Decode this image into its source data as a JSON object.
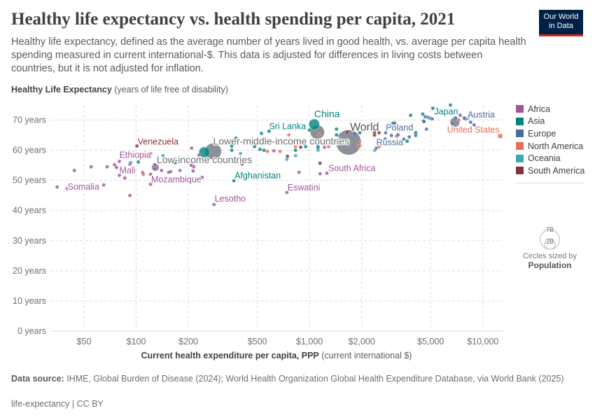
{
  "header": {
    "title": "Healthy life expectancy vs. health spending per capita, 2021",
    "subtitle": "Healthy life expectancy, defined as the average number of years lived in good health, vs. average per capita health spending measured in current international-$. This data is adjusted for differences in living costs between countries, but it is not adjusted for inflation.",
    "logo_line1": "Our World",
    "logo_line2": "in Data"
  },
  "legend": {
    "items": [
      {
        "label": "Africa",
        "color": "#a2559c"
      },
      {
        "label": "Asia",
        "color": "#00847e"
      },
      {
        "label": "Europe",
        "color": "#4c6a9c"
      },
      {
        "label": "North America",
        "color": "#e56e5a"
      },
      {
        "label": "Oceania",
        "color": "#38aaba"
      },
      {
        "label": "South America",
        "color": "#883039"
      }
    ],
    "size_big": "7B",
    "size_small": "2B",
    "size_note": "Circles sized by",
    "size_var": "Population"
  },
  "footer": {
    "source_label": "Data source:",
    "source_text": "IHME, Global Burden of Disease (2024); World Health Organization Global Health Expenditure Database, via World Bank (2025)",
    "license": "life-expectancy | CC BY"
  },
  "chart_data": {
    "type": "scatter",
    "title": "Healthy life expectancy vs. health spending per capita, 2021",
    "ylabel_bold": "Healthy Life Expectancy",
    "ylabel_rest": "(years of life free of disability)",
    "xlabel_bold": "Current health expenditure per capita, PPP",
    "xlabel_rest": "(current international $)",
    "x_scale": "log",
    "xlim": [
      32,
      13000
    ],
    "ylim": [
      0,
      75
    ],
    "grid": true,
    "legend_position": "right",
    "x_ticks": [
      {
        "v": 50,
        "label": "$50"
      },
      {
        "v": 100,
        "label": "$100"
      },
      {
        "v": 200,
        "label": "$200"
      },
      {
        "v": 500,
        "label": "$500"
      },
      {
        "v": 1000,
        "label": "$1,000"
      },
      {
        "v": 2000,
        "label": "$2,000"
      },
      {
        "v": 5000,
        "label": "$5,000"
      },
      {
        "v": 10000,
        "label": "$10,000"
      }
    ],
    "y_ticks": [
      {
        "v": 0,
        "label": "0 years"
      },
      {
        "v": 10,
        "label": "10 years"
      },
      {
        "v": 20,
        "label": "20 years"
      },
      {
        "v": 30,
        "label": "30 years"
      },
      {
        "v": 40,
        "label": "40 years"
      },
      {
        "v": 50,
        "label": "50 years"
      },
      {
        "v": 60,
        "label": "60 years"
      },
      {
        "v": 70,
        "label": "70 years"
      }
    ],
    "aggregates": [
      {
        "name": "World",
        "x": 1680,
        "y": 62.6,
        "pop": 7.9
      },
      {
        "name": "Lower-middle-income countries",
        "x": 278,
        "y": 59.6,
        "pop": 3.4
      },
      {
        "name": "",
        "x": 1110,
        "y": 66.0,
        "pop": 2.5
      },
      {
        "name": "Low-income countries",
        "x": 129,
        "y": 54.3,
        "pop": 0.7
      },
      {
        "name": "",
        "x": 6900,
        "y": 69.3,
        "pop": 1.2
      }
    ],
    "points": [
      {
        "name": "China",
        "region": "Asia",
        "x": 1064,
        "y": 68.6,
        "pop": 1.41
      },
      {
        "name": "",
        "region": "Asia",
        "x": 247,
        "y": 59.3,
        "pop": 1.41
      },
      {
        "name": "Somalia",
        "region": "Africa",
        "x": 35,
        "y": 47.8
      },
      {
        "name": "Mali",
        "region": "Africa",
        "x": 80,
        "y": 51.7
      },
      {
        "name": "Ethiopia",
        "region": "Africa",
        "x": 92,
        "y": 55.4,
        "pop": 0.12
      },
      {
        "name": "Venezuela",
        "region": "South America",
        "x": 101,
        "y": 61.4
      },
      {
        "name": "Mozambique",
        "region": "Africa",
        "x": 121,
        "y": 48.7
      },
      {
        "name": "Afghanistan",
        "region": "Asia",
        "x": 366,
        "y": 49.9
      },
      {
        "name": "Lesotho",
        "region": "Africa",
        "x": 281,
        "y": 42.0
      },
      {
        "name": "Sri Lanka",
        "region": "Asia",
        "x": 584,
        "y": 66.3
      },
      {
        "name": "Eswatini",
        "region": "Africa",
        "x": 740,
        "y": 46.0
      },
      {
        "name": "South Africa",
        "region": "Africa",
        "x": 1260,
        "y": 52.4
      },
      {
        "name": "Russia",
        "region": "Europe",
        "x": 2430,
        "y": 60.7
      },
      {
        "name": "Poland",
        "region": "Europe",
        "x": 2970,
        "y": 64.9
      },
      {
        "name": "Japan",
        "region": "Asia",
        "x": 5150,
        "y": 73.9,
        "pop": 0.125
      },
      {
        "name": "Austria",
        "region": "Europe",
        "x": 7940,
        "y": 70.4
      },
      {
        "name": "United States",
        "region": "North America",
        "x": 12600,
        "y": 64.7,
        "pop": 0.33
      },
      {
        "name": "",
        "region": "Africa",
        "x": 40,
        "y": 47.3
      },
      {
        "name": "",
        "region": "Africa",
        "x": 44,
        "y": 53.3
      },
      {
        "name": "",
        "region": "Africa",
        "x": 55,
        "y": 54.5
      },
      {
        "name": "",
        "region": "Africa",
        "x": 65,
        "y": 48.5
      },
      {
        "name": "",
        "region": "Africa",
        "x": 68,
        "y": 54.5
      },
      {
        "name": "",
        "region": "Africa",
        "x": 75,
        "y": 55.2
      },
      {
        "name": "",
        "region": "Africa",
        "x": 77,
        "y": 54.3
      },
      {
        "name": "",
        "region": "Africa",
        "x": 80,
        "y": 56.3
      },
      {
        "name": "",
        "region": "Africa",
        "x": 86,
        "y": 50.8
      },
      {
        "name": "",
        "region": "Africa",
        "x": 92,
        "y": 45.0
      },
      {
        "name": "",
        "region": "Oceania",
        "x": 93,
        "y": 55.9
      },
      {
        "name": "",
        "region": "Asia",
        "x": 103,
        "y": 56.1
      },
      {
        "name": "",
        "region": "Africa",
        "x": 109,
        "y": 52.6
      },
      {
        "name": "",
        "region": "North America",
        "x": 110,
        "y": 52.0
      },
      {
        "name": "",
        "region": "Africa",
        "x": 121,
        "y": 58.9
      },
      {
        "name": "",
        "region": "Africa",
        "x": 121,
        "y": 52.0
      },
      {
        "name": "",
        "region": "Africa",
        "x": 128,
        "y": 55.2
      },
      {
        "name": "",
        "region": "Africa",
        "x": 128,
        "y": 53.8
      },
      {
        "name": "",
        "region": "Africa",
        "x": 140,
        "y": 53.3
      },
      {
        "name": "",
        "region": "Oceania",
        "x": 143,
        "y": 58.2
      },
      {
        "name": "",
        "region": "Africa",
        "x": 154,
        "y": 52.7
      },
      {
        "name": "",
        "region": "Africa",
        "x": 158,
        "y": 52.9
      },
      {
        "name": "",
        "region": "Oceania",
        "x": 167,
        "y": 57.3
      },
      {
        "name": "",
        "region": "Asia",
        "x": 168,
        "y": 55.9
      },
      {
        "name": "",
        "region": "Africa",
        "x": 179,
        "y": 53.3
      },
      {
        "name": "",
        "region": "Africa",
        "x": 209,
        "y": 60.7
      },
      {
        "name": "",
        "region": "Africa",
        "x": 208,
        "y": 55.0
      },
      {
        "name": "",
        "region": "Africa",
        "x": 215,
        "y": 54.5
      },
      {
        "name": "",
        "region": "Africa",
        "x": 213,
        "y": 53.1
      },
      {
        "name": "",
        "region": "Africa",
        "x": 230,
        "y": 58.4
      },
      {
        "name": "",
        "region": "Africa",
        "x": 240,
        "y": 51.0
      },
      {
        "name": "",
        "region": "Asia",
        "x": 356,
        "y": 60.0
      },
      {
        "name": "",
        "region": "Asia",
        "x": 356,
        "y": 61.4
      },
      {
        "name": "",
        "region": "Asia",
        "x": 376,
        "y": 64.0
      },
      {
        "name": "",
        "region": "Oceania",
        "x": 400,
        "y": 58.9
      },
      {
        "name": "",
        "region": "Africa",
        "x": 408,
        "y": 55.4
      },
      {
        "name": "",
        "region": "Asia",
        "x": 482,
        "y": 61.2
      },
      {
        "name": "",
        "region": "Asia",
        "x": 528,
        "y": 65.6
      },
      {
        "name": "",
        "region": "Asia",
        "x": 518,
        "y": 60.3
      },
      {
        "name": "",
        "region": "Asia",
        "x": 546,
        "y": 60.0
      },
      {
        "name": "",
        "region": "North America",
        "x": 572,
        "y": 59.6
      },
      {
        "name": "",
        "region": "Africa",
        "x": 623,
        "y": 59.8
      },
      {
        "name": "",
        "region": "North America",
        "x": 676,
        "y": 59.6
      },
      {
        "name": "",
        "region": "South America",
        "x": 746,
        "y": 58.0
      },
      {
        "name": "",
        "region": "Oceania",
        "x": 740,
        "y": 57.0
      },
      {
        "name": "",
        "region": "North America",
        "x": 760,
        "y": 65.1
      },
      {
        "name": "",
        "region": "Asia",
        "x": 830,
        "y": 60.0
      },
      {
        "name": "",
        "region": "Oceania",
        "x": 830,
        "y": 58.2
      },
      {
        "name": "",
        "region": "North America",
        "x": 830,
        "y": 61.2
      },
      {
        "name": "",
        "region": "South America",
        "x": 890,
        "y": 61.0
      },
      {
        "name": "",
        "region": "Africa",
        "x": 870,
        "y": 52.7
      },
      {
        "name": "",
        "region": "Asia",
        "x": 950,
        "y": 61.2
      },
      {
        "name": "",
        "region": "Asia",
        "x": 1000,
        "y": 66.7
      },
      {
        "name": "",
        "region": "Europe",
        "x": 1120,
        "y": 60.7
      },
      {
        "name": "",
        "region": "North America",
        "x": 1140,
        "y": 65.1
      },
      {
        "name": "",
        "region": "South America",
        "x": 1150,
        "y": 55.7
      },
      {
        "name": "",
        "region": "Africa",
        "x": 1150,
        "y": 52.2
      },
      {
        "name": "",
        "region": "Asia",
        "x": 1120,
        "y": 61.2
      },
      {
        "name": "",
        "region": "Oceania",
        "x": 1120,
        "y": 60.0
      },
      {
        "name": "",
        "region": "Africa",
        "x": 1220,
        "y": 61.0
      },
      {
        "name": "",
        "region": "North America",
        "x": 1290,
        "y": 61.2
      },
      {
        "name": "",
        "region": "Asia",
        "x": 1430,
        "y": 67.0
      },
      {
        "name": "",
        "region": "Asia",
        "x": 1430,
        "y": 65.1
      },
      {
        "name": "",
        "region": "South America",
        "x": 1650,
        "y": 66.0
      },
      {
        "name": "",
        "region": "Europe",
        "x": 1830,
        "y": 65.4
      },
      {
        "name": "",
        "region": "North America",
        "x": 1920,
        "y": 62.4
      },
      {
        "name": "",
        "region": "North America",
        "x": 1940,
        "y": 61.4
      },
      {
        "name": "",
        "region": "Asia",
        "x": 1950,
        "y": 65.8
      },
      {
        "name": "",
        "region": "South America",
        "x": 2370,
        "y": 65.8
      },
      {
        "name": "",
        "region": "South America",
        "x": 2370,
        "y": 65.0
      },
      {
        "name": "",
        "region": "South America",
        "x": 2520,
        "y": 65.8
      },
      {
        "name": "",
        "region": "Oceania",
        "x": 2380,
        "y": 60.0
      },
      {
        "name": "",
        "region": "North America",
        "x": 2520,
        "y": 61.2
      },
      {
        "name": "",
        "region": "Europe",
        "x": 2750,
        "y": 65.8
      },
      {
        "name": "",
        "region": "Europe",
        "x": 2730,
        "y": 63.7
      },
      {
        "name": "",
        "region": "Asia",
        "x": 3030,
        "y": 69.0
      },
      {
        "name": "",
        "region": "Europe",
        "x": 3100,
        "y": 69.0
      },
      {
        "name": "",
        "region": "North America",
        "x": 3180,
        "y": 64.7
      },
      {
        "name": "",
        "region": "Europe",
        "x": 3240,
        "y": 65.1
      },
      {
        "name": "",
        "region": "Europe",
        "x": 3500,
        "y": 63.7
      },
      {
        "name": "",
        "region": "Asia",
        "x": 3660,
        "y": 63.0
      },
      {
        "name": "",
        "region": "Europe",
        "x": 3760,
        "y": 64.4
      },
      {
        "name": "",
        "region": "Asia",
        "x": 3830,
        "y": 71.6
      },
      {
        "name": "",
        "region": "Asia",
        "x": 4100,
        "y": 65.8
      },
      {
        "name": "",
        "region": "Europe",
        "x": 4100,
        "y": 64.9
      },
      {
        "name": "",
        "region": "Asia",
        "x": 4500,
        "y": 72.0
      },
      {
        "name": "",
        "region": "Europe",
        "x": 4540,
        "y": 69.7
      },
      {
        "name": "",
        "region": "Europe",
        "x": 4580,
        "y": 69.5
      },
      {
        "name": "",
        "region": "Europe",
        "x": 4650,
        "y": 71.1
      },
      {
        "name": "",
        "region": "Europe",
        "x": 4830,
        "y": 70.9
      },
      {
        "name": "",
        "region": "Oceania",
        "x": 4930,
        "y": 70.7
      },
      {
        "name": "",
        "region": "Europe",
        "x": 5100,
        "y": 70.4
      },
      {
        "name": "",
        "region": "Europe",
        "x": 4730,
        "y": 67.0
      },
      {
        "name": "",
        "region": "Asia",
        "x": 6500,
        "y": 75.0
      },
      {
        "name": "",
        "region": "Europe",
        "x": 6700,
        "y": 68.8
      },
      {
        "name": "",
        "region": "Europe",
        "x": 6960,
        "y": 70.7
      },
      {
        "name": "",
        "region": "North America",
        "x": 7250,
        "y": 70.0
      },
      {
        "name": "",
        "region": "Europe",
        "x": 7400,
        "y": 71.6
      },
      {
        "name": "",
        "region": "Europe",
        "x": 7800,
        "y": 70.7
      },
      {
        "name": "",
        "region": "Europe",
        "x": 8200,
        "y": 70.7
      },
      {
        "name": "",
        "region": "Europe",
        "x": 8500,
        "y": 69.3
      },
      {
        "name": "",
        "region": "Europe",
        "x": 8900,
        "y": 68.4
      }
    ]
  }
}
